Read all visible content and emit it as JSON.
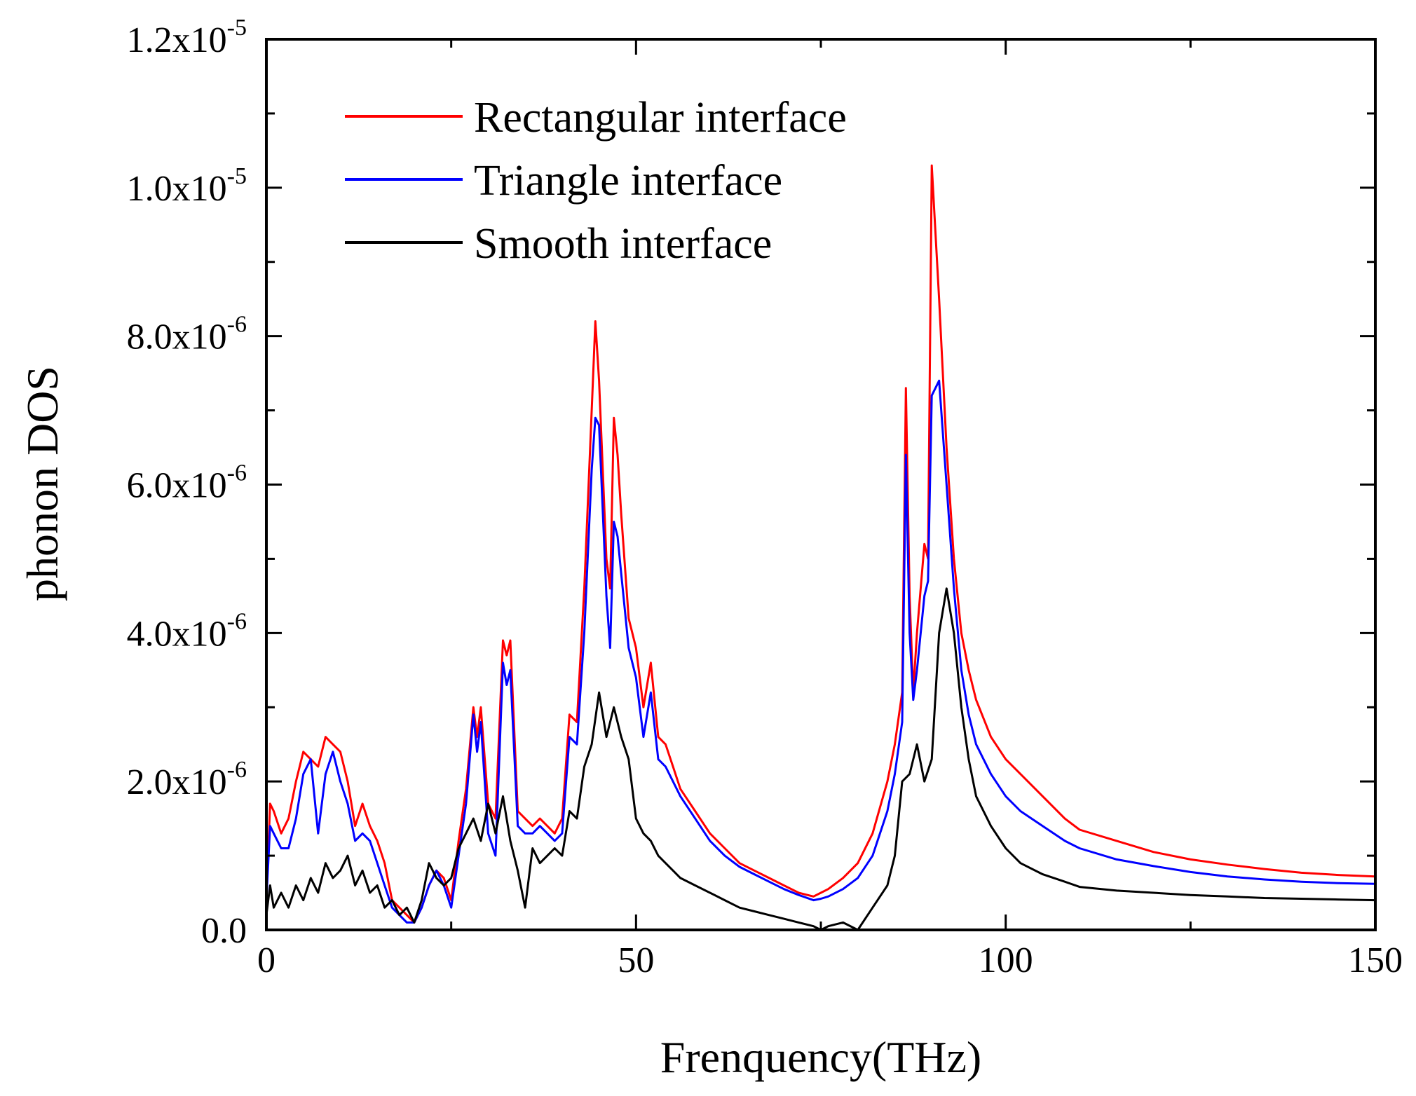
{
  "chart_data": {
    "type": "line",
    "xlabel": "Frenquency(THz)",
    "ylabel": "phonon DOS",
    "xlim": [
      0,
      150
    ],
    "ylim": [
      0,
      1.2e-05
    ],
    "xticks": [
      {
        "value": 0,
        "label": "0"
      },
      {
        "value": 50,
        "label": "50"
      },
      {
        "value": 100,
        "label": "100"
      },
      {
        "value": 150,
        "label": "150"
      }
    ],
    "yticks": [
      {
        "value": 0,
        "mantissa": "0.0",
        "exp": ""
      },
      {
        "value": 2e-06,
        "mantissa": "2.0x10",
        "exp": "-6"
      },
      {
        "value": 4e-06,
        "mantissa": "4.0x10",
        "exp": "-6"
      },
      {
        "value": 6e-06,
        "mantissa": "6.0x10",
        "exp": "-6"
      },
      {
        "value": 8e-06,
        "mantissa": "8.0x10",
        "exp": "-6"
      },
      {
        "value": 1e-05,
        "mantissa": "1.0x10",
        "exp": "-5"
      },
      {
        "value": 1.2e-05,
        "mantissa": "1.2x10",
        "exp": "-5"
      }
    ],
    "grid": false,
    "legend_position": "top-left",
    "series": [
      {
        "name": "Rectangular interface",
        "color": "#ff0000",
        "x": [
          0,
          0.5,
          1,
          2,
          3,
          4,
          5,
          6,
          7,
          8,
          9,
          10,
          11,
          12,
          13,
          14,
          15,
          16,
          17,
          18,
          19,
          20,
          21,
          22,
          23,
          24,
          25,
          26,
          27,
          28,
          28.5,
          29,
          30,
          31,
          32,
          32.5,
          33,
          34,
          35,
          36,
          37,
          38,
          39,
          40,
          41,
          42,
          43,
          44,
          44.5,
          45,
          46,
          46.5,
          47,
          47.5,
          48,
          49,
          50,
          51,
          52,
          53,
          54,
          55,
          56,
          58,
          60,
          62,
          64,
          66,
          68,
          70,
          72,
          74,
          75,
          76,
          78,
          80,
          82,
          84,
          85,
          86,
          86.5,
          87,
          87.5,
          88,
          89,
          89.5,
          90,
          91,
          92,
          93,
          94,
          95,
          96,
          98,
          100,
          102,
          105,
          108,
          110,
          115,
          120,
          125,
          130,
          135,
          140,
          145,
          150
        ],
        "values": [
          4e-07,
          1.7e-06,
          1.6e-06,
          1.3e-06,
          1.5e-06,
          2e-06,
          2.4e-06,
          2.3e-06,
          2.2e-06,
          2.6e-06,
          2.5e-06,
          2.4e-06,
          2e-06,
          1.4e-06,
          1.7e-06,
          1.4e-06,
          1.2e-06,
          9e-07,
          4e-07,
          3e-07,
          2e-07,
          1e-07,
          3e-07,
          6e-07,
          8e-07,
          7e-07,
          4e-07,
          1.2e-06,
          1.9e-06,
          3e-06,
          2.6e-06,
          3e-06,
          1.7e-06,
          1.5e-06,
          3.9e-06,
          3.7e-06,
          3.9e-06,
          1.6e-06,
          1.5e-06,
          1.4e-06,
          1.5e-06,
          1.4e-06,
          1.3e-06,
          1.5e-06,
          2.9e-06,
          2.8e-06,
          4.6e-06,
          7e-06,
          8.2e-06,
          7.4e-06,
          5e-06,
          4.6e-06,
          6.9e-06,
          6.4e-06,
          5.6e-06,
          4.2e-06,
          3.8e-06,
          3e-06,
          3.6e-06,
          2.6e-06,
          2.5e-06,
          2.2e-06,
          1.9e-06,
          1.6e-06,
          1.3e-06,
          1.1e-06,
          9e-07,
          8e-07,
          7e-07,
          6e-07,
          5e-07,
          4.5e-07,
          5e-07,
          5.5e-07,
          7e-07,
          9e-07,
          1.3e-06,
          2e-06,
          2.5e-06,
          3.2e-06,
          7.3e-06,
          4.5e-06,
          3.2e-06,
          4e-06,
          5.2e-06,
          5e-06,
          1.03e-05,
          8.5e-06,
          6.5e-06,
          5e-06,
          4e-06,
          3.5e-06,
          3.1e-06,
          2.6e-06,
          2.3e-06,
          2.1e-06,
          1.8e-06,
          1.5e-06,
          1.35e-06,
          1.2e-06,
          1.05e-06,
          9.5e-07,
          8.8e-07,
          8.2e-07,
          7.7e-07,
          7.4e-07,
          7.2e-07
        ]
      },
      {
        "name": "Triangle interface",
        "color": "#0000ff",
        "x": [
          0,
          0.5,
          1,
          2,
          3,
          4,
          5,
          6,
          7,
          8,
          9,
          10,
          11,
          12,
          13,
          14,
          15,
          16,
          17,
          18,
          19,
          20,
          21,
          22,
          23,
          24,
          25,
          26,
          27,
          28,
          28.5,
          29,
          30,
          31,
          32,
          32.5,
          33,
          34,
          35,
          36,
          37,
          38,
          39,
          40,
          41,
          42,
          43,
          44,
          44.5,
          45,
          46,
          46.5,
          47,
          47.5,
          48,
          49,
          50,
          51,
          52,
          53,
          54,
          55,
          56,
          58,
          60,
          62,
          64,
          66,
          68,
          70,
          72,
          74,
          75,
          76,
          78,
          80,
          82,
          84,
          85,
          86,
          86.5,
          87,
          87.5,
          88,
          89,
          89.5,
          90,
          91,
          92,
          93,
          94,
          95,
          96,
          98,
          100,
          102,
          105,
          108,
          110,
          115,
          120,
          125,
          130,
          135,
          140,
          145,
          150
        ],
        "values": [
          4e-07,
          1.4e-06,
          1.3e-06,
          1.1e-06,
          1.1e-06,
          1.5e-06,
          2.1e-06,
          2.3e-06,
          1.3e-06,
          2.1e-06,
          2.4e-06,
          2e-06,
          1.7e-06,
          1.2e-06,
          1.3e-06,
          1.2e-06,
          9e-07,
          6e-07,
          3e-07,
          2e-07,
          1e-07,
          1e-07,
          3e-07,
          6e-07,
          8e-07,
          6e-07,
          3e-07,
          1e-06,
          1.7e-06,
          2.9e-06,
          2.4e-06,
          2.8e-06,
          1.3e-06,
          1e-06,
          3.6e-06,
          3.3e-06,
          3.5e-06,
          1.4e-06,
          1.3e-06,
          1.3e-06,
          1.4e-06,
          1.3e-06,
          1.2e-06,
          1.3e-06,
          2.6e-06,
          2.5e-06,
          4e-06,
          6.2e-06,
          6.9e-06,
          6.8e-06,
          4.5e-06,
          3.8e-06,
          5.5e-06,
          5.3e-06,
          4.8e-06,
          3.8e-06,
          3.4e-06,
          2.6e-06,
          3.2e-06,
          2.3e-06,
          2.2e-06,
          2e-06,
          1.8e-06,
          1.5e-06,
          1.2e-06,
          1e-06,
          8.5e-07,
          7.5e-07,
          6.5e-07,
          5.5e-07,
          4.7e-07,
          4e-07,
          4.2e-07,
          4.5e-07,
          5.5e-07,
          7e-07,
          1e-06,
          1.6e-06,
          2.1e-06,
          2.8e-06,
          6.4e-06,
          4e-06,
          3.1e-06,
          3.5e-06,
          4.5e-06,
          4.7e-06,
          7.2e-06,
          7.4e-06,
          6e-06,
          4.6e-06,
          3.5e-06,
          2.9e-06,
          2.5e-06,
          2.1e-06,
          1.8e-06,
          1.6e-06,
          1.4e-06,
          1.2e-06,
          1.1e-06,
          9.5e-07,
          8.6e-07,
          7.8e-07,
          7.2e-07,
          6.8e-07,
          6.5e-07,
          6.3e-07,
          6.2e-07
        ]
      },
      {
        "name": "Smooth interface",
        "color": "#000000",
        "x": [
          0,
          0.5,
          1,
          2,
          3,
          4,
          5,
          6,
          7,
          8,
          9,
          10,
          11,
          12,
          13,
          14,
          15,
          16,
          17,
          18,
          19,
          20,
          21,
          22,
          23,
          24,
          25,
          26,
          27,
          28,
          29,
          30,
          31,
          32,
          33,
          34,
          35,
          36,
          37,
          38,
          39,
          40,
          41,
          42,
          43,
          44,
          45,
          46,
          47,
          48,
          49,
          50,
          51,
          52,
          53,
          54,
          55,
          56,
          58,
          60,
          62,
          64,
          66,
          68,
          70,
          72,
          74,
          75,
          76,
          78,
          80,
          82,
          84,
          85,
          86,
          87,
          88,
          89,
          90,
          91,
          92,
          93,
          94,
          95,
          96,
          98,
          100,
          102,
          105,
          108,
          110,
          115,
          120,
          125,
          130,
          135,
          140,
          145,
          150
        ],
        "values": [
          2e-07,
          6e-07,
          3e-07,
          5e-07,
          3e-07,
          6e-07,
          4e-07,
          7e-07,
          5e-07,
          9e-07,
          7e-07,
          8e-07,
          1e-06,
          6e-07,
          8e-07,
          5e-07,
          6e-07,
          3e-07,
          4e-07,
          2e-07,
          3e-07,
          1e-07,
          4e-07,
          9e-07,
          7e-07,
          6e-07,
          7e-07,
          1.1e-06,
          1.3e-06,
          1.5e-06,
          1.2e-06,
          1.7e-06,
          1.3e-06,
          1.8e-06,
          1.2e-06,
          8e-07,
          3e-07,
          1.1e-06,
          9e-07,
          1e-06,
          1.1e-06,
          1e-06,
          1.6e-06,
          1.5e-06,
          2.2e-06,
          2.5e-06,
          3.2e-06,
          2.6e-06,
          3e-06,
          2.6e-06,
          2.3e-06,
          1.5e-06,
          1.3e-06,
          1.2e-06,
          1e-06,
          9e-07,
          8e-07,
          7e-07,
          6e-07,
          5e-07,
          4e-07,
          3e-07,
          2.5e-07,
          2e-07,
          1.5e-07,
          1e-07,
          5e-08,
          0.0,
          5e-08,
          1e-07,
          0.0,
          3e-07,
          6e-07,
          1e-06,
          2e-06,
          2.1e-06,
          2.5e-06,
          2e-06,
          2.3e-06,
          4e-06,
          4.6e-06,
          4e-06,
          3e-06,
          2.3e-06,
          1.8e-06,
          1.4e-06,
          1.1e-06,
          9e-07,
          7.5e-07,
          6.5e-07,
          5.8e-07,
          5.3e-07,
          5e-07,
          4.7e-07,
          4.5e-07,
          4.3e-07,
          4.2e-07,
          4.1e-07,
          4e-07
        ]
      }
    ]
  }
}
